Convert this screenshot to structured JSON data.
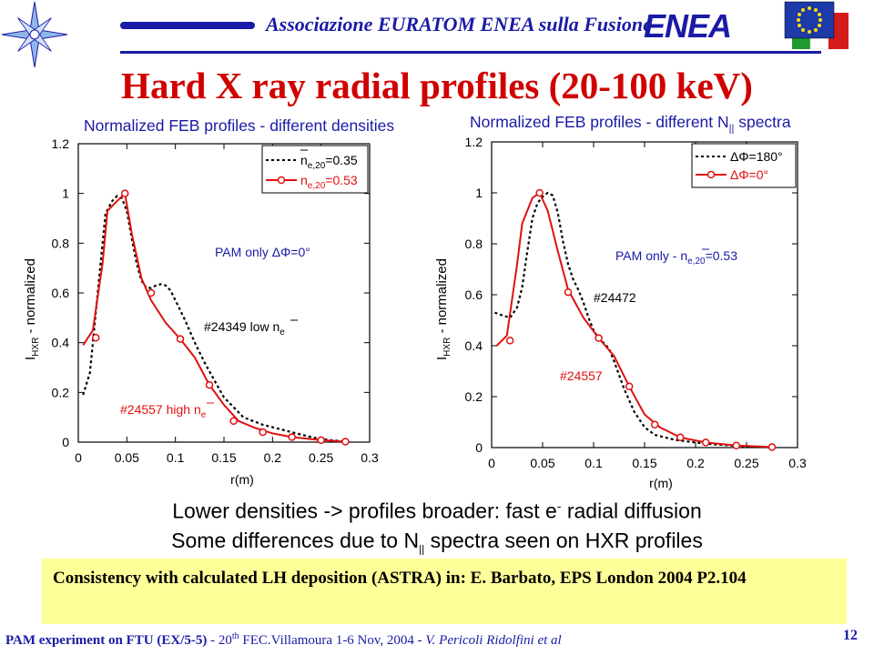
{
  "header": {
    "association": "Associazione EURATOM ENEA sulla Fusione",
    "logo_text": "ENEA",
    "colors": {
      "blue": "#1a1aa6",
      "red": "#d00000"
    }
  },
  "title": "Hard X ray radial profiles (20-100 keV)",
  "chart_data": [
    {
      "type": "line",
      "title": "Normalized FEB profiles - different densities",
      "xlabel": "r(m)",
      "ylabel": "I_HXR - normalized",
      "xlim": [
        0,
        0.3
      ],
      "ylim": [
        0,
        1.2
      ],
      "xticks": [
        "0",
        "0.05",
        "0.1",
        "0.15",
        "0.2",
        "0.25",
        "0.3"
      ],
      "yticks": [
        "0",
        "0.2",
        "0.4",
        "0.6",
        "0.8",
        "1",
        "1.2"
      ],
      "legend_position": "top-right",
      "series": [
        {
          "legend": "n_e,20=0.35",
          "style": "dashed",
          "color": "#000000",
          "x": [
            0.005,
            0.012,
            0.02,
            0.028,
            0.035,
            0.04,
            0.045,
            0.05,
            0.055,
            0.06,
            0.065,
            0.07,
            0.075,
            0.08,
            0.085,
            0.09,
            0.095,
            0.1,
            0.105,
            0.11,
            0.12,
            0.13,
            0.14,
            0.15,
            0.16,
            0.17,
            0.18,
            0.19,
            0.2,
            0.21,
            0.22,
            0.23,
            0.24,
            0.25,
            0.26,
            0.27,
            0.28
          ],
          "y": [
            0.19,
            0.28,
            0.6,
            0.92,
            0.97,
            0.99,
            0.98,
            0.93,
            0.82,
            0.72,
            0.65,
            0.62,
            0.62,
            0.63,
            0.635,
            0.63,
            0.61,
            0.57,
            0.53,
            0.49,
            0.4,
            0.32,
            0.25,
            0.18,
            0.14,
            0.1,
            0.085,
            0.07,
            0.06,
            0.05,
            0.04,
            0.03,
            0.02,
            0.012,
            0.008,
            0.004,
            0.002
          ]
        },
        {
          "legend": "n_e,20=0.53",
          "style": "solid-circles",
          "color": "#e01010",
          "x": [
            0.005,
            0.015,
            0.025,
            0.03,
            0.04,
            0.048,
            0.055,
            0.065,
            0.075,
            0.09,
            0.105,
            0.12,
            0.135,
            0.15,
            0.165,
            0.18,
            0.2,
            0.22,
            0.25,
            0.275
          ],
          "y": [
            0.39,
            0.45,
            0.72,
            0.93,
            0.97,
            1.0,
            0.84,
            0.66,
            0.57,
            0.48,
            0.415,
            0.34,
            0.23,
            0.15,
            0.085,
            0.06,
            0.035,
            0.02,
            0.008,
            0.002
          ],
          "marker_x": [
            0.018,
            0.048,
            0.075,
            0.105,
            0.135,
            0.16,
            0.19,
            0.22,
            0.25,
            0.275
          ],
          "marker_y": [
            0.42,
            1.0,
            0.6,
            0.415,
            0.23,
            0.085,
            0.04,
            0.02,
            0.008,
            0.002
          ]
        }
      ],
      "legend_entries": [
        {
          "main": "n",
          "sub": "e,20",
          "value": "=0.35"
        },
        {
          "main": "n",
          "sub": "e,20",
          "value": "=0.53"
        }
      ],
      "annotations": {
        "pam": "PAM only  ΔΦ=0°",
        "shot_low": "#24349 low n",
        "shot_low_sub": "e",
        "shot_high": "#24557 high n",
        "shot_high_sub": "e"
      }
    },
    {
      "type": "line",
      "title": "Normalized FEB profiles - different N",
      "title_sub": "||",
      "title_end": " spectra",
      "xlabel": "r(m)",
      "ylabel": "I_HXR - normalized",
      "xlim": [
        0,
        0.3
      ],
      "ylim": [
        0,
        1.2
      ],
      "xticks": [
        "0",
        "0.05",
        "0.1",
        "0.15",
        "0.2",
        "0.25",
        "0.3"
      ],
      "yticks": [
        "0",
        "0.2",
        "0.4",
        "0.6",
        "0.8",
        "1",
        "1.2"
      ],
      "legend_position": "top-right",
      "series": [
        {
          "legend": "ΔΦ=180°",
          "style": "dashed",
          "color": "#000000",
          "x": [
            0.003,
            0.01,
            0.018,
            0.025,
            0.03,
            0.035,
            0.04,
            0.045,
            0.05,
            0.055,
            0.06,
            0.065,
            0.07,
            0.075,
            0.08,
            0.085,
            0.09,
            0.095,
            0.1,
            0.105,
            0.11,
            0.115,
            0.12,
            0.13,
            0.14,
            0.15,
            0.16,
            0.17,
            0.18,
            0.2,
            0.22,
            0.25,
            0.275
          ],
          "y": [
            0.53,
            0.52,
            0.51,
            0.55,
            0.63,
            0.77,
            0.9,
            0.96,
            0.985,
            1.0,
            0.99,
            0.92,
            0.81,
            0.72,
            0.66,
            0.62,
            0.57,
            0.51,
            0.46,
            0.43,
            0.41,
            0.39,
            0.34,
            0.23,
            0.14,
            0.08,
            0.05,
            0.04,
            0.03,
            0.02,
            0.012,
            0.005,
            0.002
          ]
        },
        {
          "legend": "ΔΦ=0°",
          "style": "solid-circles",
          "color": "#e01010",
          "x": [
            0.005,
            0.015,
            0.025,
            0.03,
            0.035,
            0.04,
            0.047,
            0.055,
            0.065,
            0.075,
            0.09,
            0.105,
            0.12,
            0.135,
            0.15,
            0.165,
            0.185,
            0.21,
            0.24,
            0.275
          ],
          "y": [
            0.4,
            0.44,
            0.72,
            0.88,
            0.93,
            0.98,
            1.0,
            0.93,
            0.77,
            0.62,
            0.51,
            0.43,
            0.36,
            0.24,
            0.13,
            0.08,
            0.04,
            0.02,
            0.008,
            0.002
          ],
          "marker_x": [
            0.018,
            0.047,
            0.075,
            0.105,
            0.135,
            0.16,
            0.185,
            0.21,
            0.24,
            0.275
          ],
          "marker_y": [
            0.42,
            1.0,
            0.61,
            0.43,
            0.24,
            0.09,
            0.04,
            0.02,
            0.008,
            0.002
          ]
        }
      ],
      "legend_entries": [
        {
          "value": "ΔΦ=180°"
        },
        {
          "value": "ΔΦ=0°"
        }
      ],
      "annotations": {
        "pam": "PAM only - n",
        "pam_sub": "e,20",
        "pam_end": "=0.53",
        "shot_a": "#24472",
        "shot_b": "#24557"
      }
    }
  ],
  "ylabel_parts": {
    "main": "I",
    "sub": "HXR",
    "rest": " - normalized"
  },
  "caption": {
    "line1_a": "Lower densities -> profiles broader: fast e",
    "line1_sup": "-",
    "line1_b": " radial diffusion",
    "line2_a": "Some differences due to N",
    "line2_sub": "||",
    "line2_b": " spectra seen on HXR profiles"
  },
  "box_text": "Consistency with calculated LH deposition (ASTRA) in: E. Barbato, EPS London 2004 P2.104",
  "footer": {
    "bold": "PAM experiment on FTU (EX/5-5)",
    "sep": " - 20",
    "sup": "th",
    "mid": " FEC.Villamoura 1-6 Nov, 2004 - ",
    "ital": "V. Pericoli Ridolfini et al"
  },
  "page_number": "12"
}
